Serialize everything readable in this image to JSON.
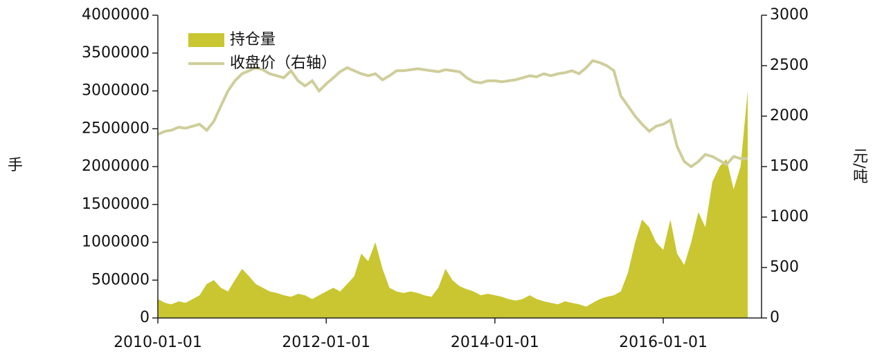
{
  "chart_data": {
    "type": "combo",
    "x": [
      "2010-01-01",
      "2010-02-01",
      "2010-03-01",
      "2010-04-01",
      "2010-05-01",
      "2010-06-01",
      "2010-07-01",
      "2010-08-01",
      "2010-09-01",
      "2010-10-01",
      "2010-11-01",
      "2010-12-01",
      "2011-01-01",
      "2011-02-01",
      "2011-03-01",
      "2011-04-01",
      "2011-05-01",
      "2011-06-01",
      "2011-07-01",
      "2011-08-01",
      "2011-09-01",
      "2011-10-01",
      "2011-11-01",
      "2011-12-01",
      "2012-01-01",
      "2012-02-01",
      "2012-03-01",
      "2012-04-01",
      "2012-05-01",
      "2012-06-01",
      "2012-07-01",
      "2012-08-01",
      "2012-09-01",
      "2012-10-01",
      "2012-11-01",
      "2012-12-01",
      "2013-01-01",
      "2013-02-01",
      "2013-03-01",
      "2013-04-01",
      "2013-05-01",
      "2013-06-01",
      "2013-07-01",
      "2013-08-01",
      "2013-09-01",
      "2013-10-01",
      "2013-11-01",
      "2013-12-01",
      "2014-01-01",
      "2014-02-01",
      "2014-03-01",
      "2014-04-01",
      "2014-05-01",
      "2014-06-01",
      "2014-07-01",
      "2014-08-01",
      "2014-09-01",
      "2014-10-01",
      "2014-11-01",
      "2014-12-01",
      "2015-01-01",
      "2015-02-01",
      "2015-03-01",
      "2015-04-01",
      "2015-05-01",
      "2015-06-01",
      "2015-07-01",
      "2015-08-01",
      "2015-09-01",
      "2015-10-01",
      "2015-11-01",
      "2015-12-01",
      "2016-01-01",
      "2016-02-01",
      "2016-03-01",
      "2016-04-01",
      "2016-05-01",
      "2016-06-01",
      "2016-07-01",
      "2016-08-01",
      "2016-09-01",
      "2016-10-01",
      "2016-11-01",
      "2016-12-01",
      "2017-01-01"
    ],
    "series": [
      {
        "name": "持仓量",
        "style": "area",
        "color": "#c9c631",
        "values": [
          250000,
          200000,
          180000,
          220000,
          200000,
          250000,
          300000,
          450000,
          500000,
          400000,
          350000,
          500000,
          650000,
          550000,
          450000,
          400000,
          350000,
          330000,
          300000,
          280000,
          320000,
          300000,
          250000,
          300000,
          350000,
          400000,
          350000,
          450000,
          550000,
          850000,
          750000,
          1000000,
          650000,
          400000,
          350000,
          330000,
          350000,
          330000,
          300000,
          280000,
          400000,
          650000,
          500000,
          420000,
          380000,
          350000,
          300000,
          320000,
          300000,
          280000,
          250000,
          230000,
          250000,
          300000,
          250000,
          220000,
          200000,
          180000,
          220000,
          200000,
          180000,
          150000,
          200000,
          250000,
          280000,
          300000,
          350000,
          600000,
          1000000,
          1300000,
          1200000,
          1000000,
          900000,
          1300000,
          850000,
          700000,
          1000000,
          1400000,
          1200000,
          1800000,
          2000000,
          2100000,
          1700000,
          2000000,
          3000000
        ]
      },
      {
        "name": "收盘价（右轴）",
        "style": "line",
        "axis": "y2",
        "color": "#cfcd9a",
        "values": [
          1820,
          1850,
          1860,
          1890,
          1880,
          1900,
          1920,
          1860,
          1950,
          2100,
          2250,
          2350,
          2420,
          2450,
          2480,
          2460,
          2420,
          2400,
          2380,
          2450,
          2350,
          2300,
          2350,
          2250,
          2320,
          2380,
          2440,
          2480,
          2450,
          2420,
          2400,
          2420,
          2360,
          2400,
          2450,
          2450,
          2460,
          2470,
          2460,
          2450,
          2440,
          2460,
          2450,
          2440,
          2380,
          2340,
          2330,
          2350,
          2350,
          2340,
          2350,
          2360,
          2380,
          2400,
          2390,
          2420,
          2400,
          2420,
          2430,
          2450,
          2420,
          2480,
          2550,
          2530,
          2500,
          2450,
          2200,
          2100,
          2000,
          1920,
          1850,
          1900,
          1920,
          1960,
          1700,
          1550,
          1500,
          1550,
          1620,
          1600,
          1560,
          1520,
          1600,
          1580,
          1580
        ]
      }
    ],
    "xlim": [
      "2010-01-01",
      "2017-01-31"
    ],
    "xticks": [
      "2010-01-01",
      "2012-01-01",
      "2014-01-01",
      "2016-01-01"
    ],
    "ylim": [
      0,
      4000000
    ],
    "yticks": [
      0,
      500000,
      1000000,
      1500000,
      2000000,
      2500000,
      3000000,
      3500000,
      4000000
    ],
    "y2lim": [
      0,
      3000
    ],
    "y2ticks": [
      0,
      500,
      1000,
      1500,
      2000,
      2500,
      3000
    ],
    "ylabel": "手",
    "y2label": "元/吨",
    "legend": "upper left"
  }
}
